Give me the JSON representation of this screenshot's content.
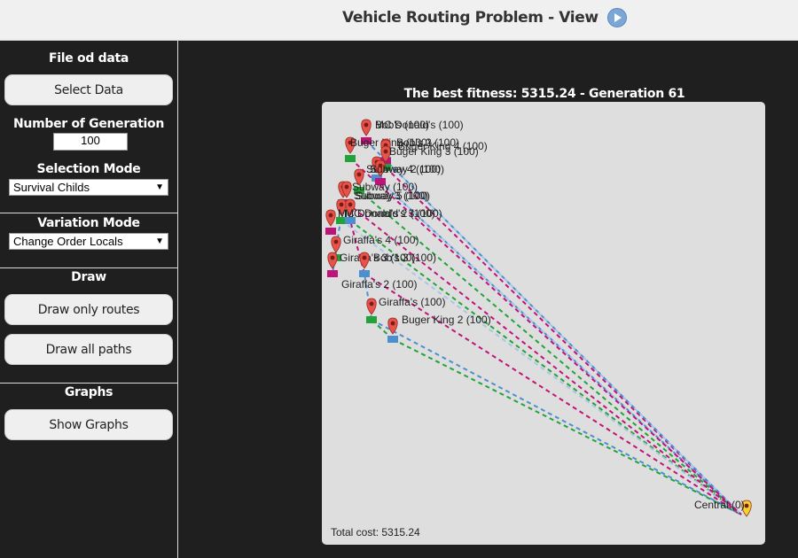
{
  "header": {
    "title": "Vehicle Routing Problem - View",
    "play_icon": "play-circle-icon"
  },
  "sidebar": {
    "file_section_title": "File od data",
    "select_data_label": "Select Data",
    "generations_title": "Number of Generation",
    "generations_value": "100",
    "selection_title": "Selection Mode",
    "selection_value": "Survival Childs",
    "variation_title": "Variation Mode",
    "variation_value": "Change Order Locals",
    "draw_title": "Draw",
    "draw_routes_label": "Draw only routes",
    "draw_paths_label": "Draw all paths",
    "graphs_title": "Graphs",
    "show_graphs_label": "Show Graphs"
  },
  "main": {
    "fitness_text": "The best fitness: 5315.24 - Generation 61",
    "total_cost_text": "Total cost: 5315.24"
  },
  "colors": {
    "pin": "#e5534b",
    "central_pin": "#f2d22e",
    "route_green": "#22a33a",
    "route_blue": "#4a8fd0",
    "route_magenta": "#c0137a",
    "route_lightblue": "#a9c6e6"
  },
  "map": {
    "locations": [
      {
        "label": "Bob's (100)"
      },
      {
        "label": "MC Donald's (100)"
      },
      {
        "label": "Buger King (100)"
      },
      {
        "label": "Bob's 2 (100)"
      },
      {
        "label": "Buger King 4 (100)"
      },
      {
        "label": "Buger King 3 (100)"
      },
      {
        "label": "Subway 4 (100)"
      },
      {
        "label": "Subway 2 (100)"
      },
      {
        "label": "Subway (100)"
      },
      {
        "label": "Subway 3 (100)"
      },
      {
        "label": "Subway 5 (100)"
      },
      {
        "label": "MC Donald's 2 (100)"
      },
      {
        "label": "MC Donald's 3 (100)"
      },
      {
        "label": "Giraffa's 4 (100)"
      },
      {
        "label": "Giraffa's 3 (100)"
      },
      {
        "label": "Bob's 3 (100)"
      },
      {
        "label": "Giraffa's 2 (100)"
      },
      {
        "label": "Giraffa's (100)"
      },
      {
        "label": "Buger King 2 (100)"
      }
    ],
    "central": {
      "label": "Central (0)"
    }
  }
}
